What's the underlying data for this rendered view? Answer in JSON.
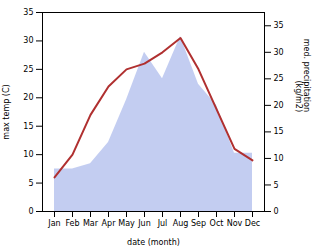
{
  "chart_data": {
    "type": "line",
    "xlabel": "date (month)",
    "ylabel": "max temp (C)",
    "y2label": "med. precipitation\n(kg/m2)",
    "categories": [
      "Jan",
      "Feb",
      "Mar",
      "Apr",
      "May",
      "Jun",
      "Jul",
      "Aug",
      "Sep",
      "Oct",
      "Nov",
      "Dec"
    ],
    "series": [
      {
        "type": "line",
        "color": "#b03030",
        "values": [
          6,
          10,
          17,
          22,
          25,
          26,
          28,
          30.5,
          25,
          18,
          11,
          9
        ]
      },
      {
        "type": "area",
        "color": "#b8c4ee",
        "axis": "y2",
        "values": [
          8,
          8,
          9,
          13,
          21,
          30,
          25,
          33,
          24,
          20,
          11,
          11
        ]
      }
    ],
    "ylim": [
      0,
      35
    ],
    "yticks": [
      0,
      5,
      10,
      15,
      20,
      25,
      30,
      35
    ],
    "y2lim": [
      0,
      37.5
    ],
    "y2ticks": [
      0,
      5,
      10,
      15,
      20,
      25,
      30,
      35
    ],
    "grid": false
  }
}
